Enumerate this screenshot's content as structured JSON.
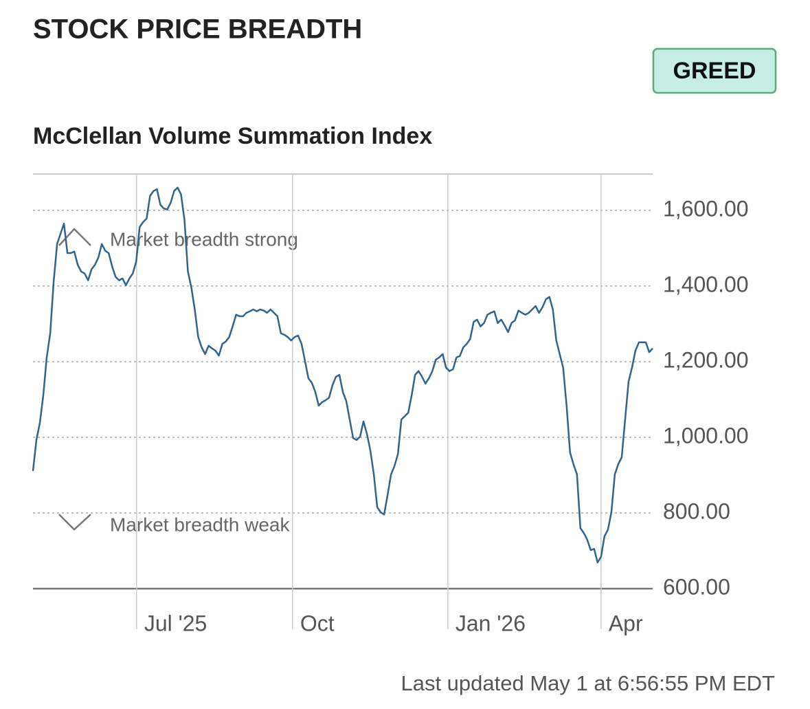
{
  "chart_data": {
    "type": "line",
    "title": "STOCK PRICE BREADTH",
    "badge": "GREED",
    "subtitle": "McClellan Volume Summation Index",
    "last_updated": "Last updated May 1 at 6:56:55 PM EDT",
    "annotations": [
      "Market breadth strong",
      "Market breadth weak"
    ],
    "color": "#2f6490",
    "xlim": [
      0,
      180
    ],
    "xticks": [
      {
        "value": 30.1,
        "label": "Jul '25"
      },
      {
        "value": 75.4,
        "label": "Oct"
      },
      {
        "value": 120.5,
        "label": "Jan '26"
      },
      {
        "value": 165.0,
        "label": "Apr"
      }
    ],
    "ylim": [
      600,
      1696
    ],
    "yticks": [
      {
        "value": 600,
        "label": "600.00"
      },
      {
        "value": 800,
        "label": "800.00"
      },
      {
        "value": 1000,
        "label": "1,000.00"
      },
      {
        "value": 1200,
        "label": "1,200.00"
      },
      {
        "value": 1400,
        "label": "1,400.00"
      },
      {
        "value": 1600,
        "label": "1,600.00"
      }
    ],
    "grid": true,
    "values": [
      911,
      993,
      1038,
      1111,
      1211,
      1275,
      1411,
      1511,
      1538,
      1565,
      1487,
      1487,
      1491,
      1456,
      1438,
      1433,
      1415,
      1444,
      1456,
      1475,
      1511,
      1493,
      1487,
      1451,
      1424,
      1415,
      1420,
      1402,
      1420,
      1433,
      1465,
      1556,
      1569,
      1578,
      1638,
      1651,
      1656,
      1615,
      1605,
      1602,
      1620,
      1651,
      1660,
      1642,
      1575,
      1438,
      1396,
      1338,
      1265,
      1238,
      1220,
      1242,
      1235,
      1229,
      1216,
      1247,
      1253,
      1265,
      1293,
      1324,
      1320,
      1320,
      1329,
      1333,
      1338,
      1333,
      1338,
      1335,
      1329,
      1338,
      1329,
      1320,
      1275,
      1271,
      1265,
      1256,
      1265,
      1269,
      1247,
      1202,
      1156,
      1144,
      1120,
      1084,
      1093,
      1098,
      1105,
      1138,
      1160,
      1165,
      1120,
      1096,
      1047,
      998,
      993,
      1002,
      1042,
      1009,
      965,
      902,
      815,
      802,
      796,
      847,
      902,
      924,
      956,
      1047,
      1056,
      1065,
      1111,
      1165,
      1175,
      1160,
      1142,
      1156,
      1175,
      1205,
      1211,
      1220,
      1184,
      1175,
      1180,
      1211,
      1215,
      1238,
      1247,
      1260,
      1305,
      1311,
      1293,
      1302,
      1324,
      1329,
      1333,
      1302,
      1311,
      1296,
      1278,
      1302,
      1309,
      1335,
      1329,
      1324,
      1329,
      1338,
      1347,
      1329,
      1344,
      1365,
      1371,
      1338,
      1256,
      1220,
      1184,
      1084,
      960,
      929,
      902,
      760,
      747,
      729,
      702,
      705,
      669,
      684,
      738,
      756,
      802,
      902,
      929,
      947,
      1047,
      1147,
      1184,
      1229,
      1251,
      1251,
      1251,
      1225,
      1235
    ]
  }
}
